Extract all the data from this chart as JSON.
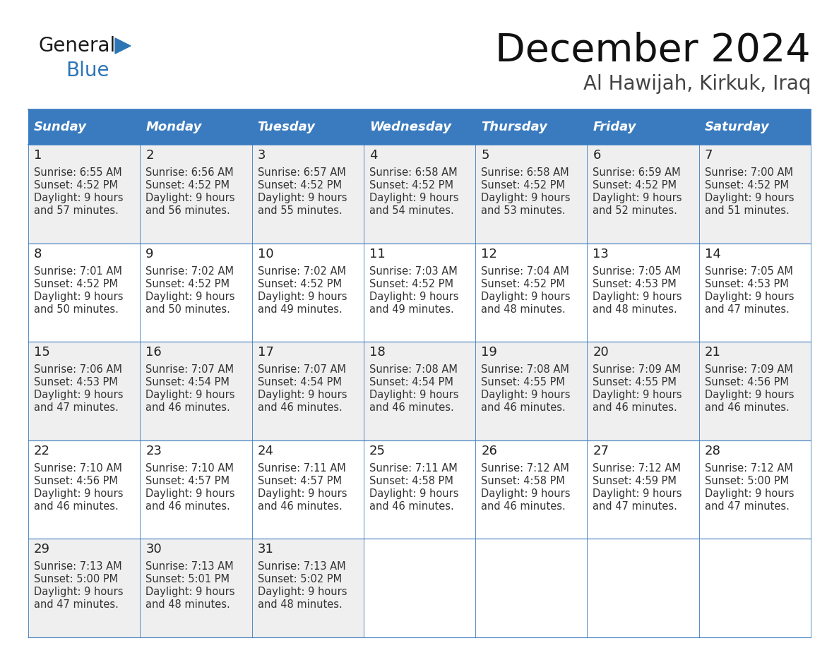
{
  "title": "December 2024",
  "subtitle": "Al Hawijah, Kirkuk, Iraq",
  "header_color": "#3a7bbf",
  "header_text_color": "#ffffff",
  "day_names": [
    "Sunday",
    "Monday",
    "Tuesday",
    "Wednesday",
    "Thursday",
    "Friday",
    "Saturday"
  ],
  "background_color": "#ffffff",
  "row_bg_even": "#efefef",
  "row_bg_odd": "#ffffff",
  "border_color": "#3a7bbf",
  "text_color": "#333333",
  "day_num_color": "#222222",
  "logo_general_color": "#1a1a1a",
  "logo_blue_color": "#2e75b6",
  "logo_triangle_color": "#2e75b6",
  "days": [
    {
      "day": 1,
      "col": 0,
      "row": 0,
      "sunrise": "6:55 AM",
      "sunset": "4:52 PM",
      "daylight": "9 hours and 57 minutes."
    },
    {
      "day": 2,
      "col": 1,
      "row": 0,
      "sunrise": "6:56 AM",
      "sunset": "4:52 PM",
      "daylight": "9 hours and 56 minutes."
    },
    {
      "day": 3,
      "col": 2,
      "row": 0,
      "sunrise": "6:57 AM",
      "sunset": "4:52 PM",
      "daylight": "9 hours and 55 minutes."
    },
    {
      "day": 4,
      "col": 3,
      "row": 0,
      "sunrise": "6:58 AM",
      "sunset": "4:52 PM",
      "daylight": "9 hours and 54 minutes."
    },
    {
      "day": 5,
      "col": 4,
      "row": 0,
      "sunrise": "6:58 AM",
      "sunset": "4:52 PM",
      "daylight": "9 hours and 53 minutes."
    },
    {
      "day": 6,
      "col": 5,
      "row": 0,
      "sunrise": "6:59 AM",
      "sunset": "4:52 PM",
      "daylight": "9 hours and 52 minutes."
    },
    {
      "day": 7,
      "col": 6,
      "row": 0,
      "sunrise": "7:00 AM",
      "sunset": "4:52 PM",
      "daylight": "9 hours and 51 minutes."
    },
    {
      "day": 8,
      "col": 0,
      "row": 1,
      "sunrise": "7:01 AM",
      "sunset": "4:52 PM",
      "daylight": "9 hours and 50 minutes."
    },
    {
      "day": 9,
      "col": 1,
      "row": 1,
      "sunrise": "7:02 AM",
      "sunset": "4:52 PM",
      "daylight": "9 hours and 50 minutes."
    },
    {
      "day": 10,
      "col": 2,
      "row": 1,
      "sunrise": "7:02 AM",
      "sunset": "4:52 PM",
      "daylight": "9 hours and 49 minutes."
    },
    {
      "day": 11,
      "col": 3,
      "row": 1,
      "sunrise": "7:03 AM",
      "sunset": "4:52 PM",
      "daylight": "9 hours and 49 minutes."
    },
    {
      "day": 12,
      "col": 4,
      "row": 1,
      "sunrise": "7:04 AM",
      "sunset": "4:52 PM",
      "daylight": "9 hours and 48 minutes."
    },
    {
      "day": 13,
      "col": 5,
      "row": 1,
      "sunrise": "7:05 AM",
      "sunset": "4:53 PM",
      "daylight": "9 hours and 48 minutes."
    },
    {
      "day": 14,
      "col": 6,
      "row": 1,
      "sunrise": "7:05 AM",
      "sunset": "4:53 PM",
      "daylight": "9 hours and 47 minutes."
    },
    {
      "day": 15,
      "col": 0,
      "row": 2,
      "sunrise": "7:06 AM",
      "sunset": "4:53 PM",
      "daylight": "9 hours and 47 minutes."
    },
    {
      "day": 16,
      "col": 1,
      "row": 2,
      "sunrise": "7:07 AM",
      "sunset": "4:54 PM",
      "daylight": "9 hours and 46 minutes."
    },
    {
      "day": 17,
      "col": 2,
      "row": 2,
      "sunrise": "7:07 AM",
      "sunset": "4:54 PM",
      "daylight": "9 hours and 46 minutes."
    },
    {
      "day": 18,
      "col": 3,
      "row": 2,
      "sunrise": "7:08 AM",
      "sunset": "4:54 PM",
      "daylight": "9 hours and 46 minutes."
    },
    {
      "day": 19,
      "col": 4,
      "row": 2,
      "sunrise": "7:08 AM",
      "sunset": "4:55 PM",
      "daylight": "9 hours and 46 minutes."
    },
    {
      "day": 20,
      "col": 5,
      "row": 2,
      "sunrise": "7:09 AM",
      "sunset": "4:55 PM",
      "daylight": "9 hours and 46 minutes."
    },
    {
      "day": 21,
      "col": 6,
      "row": 2,
      "sunrise": "7:09 AM",
      "sunset": "4:56 PM",
      "daylight": "9 hours and 46 minutes."
    },
    {
      "day": 22,
      "col": 0,
      "row": 3,
      "sunrise": "7:10 AM",
      "sunset": "4:56 PM",
      "daylight": "9 hours and 46 minutes."
    },
    {
      "day": 23,
      "col": 1,
      "row": 3,
      "sunrise": "7:10 AM",
      "sunset": "4:57 PM",
      "daylight": "9 hours and 46 minutes."
    },
    {
      "day": 24,
      "col": 2,
      "row": 3,
      "sunrise": "7:11 AM",
      "sunset": "4:57 PM",
      "daylight": "9 hours and 46 minutes."
    },
    {
      "day": 25,
      "col": 3,
      "row": 3,
      "sunrise": "7:11 AM",
      "sunset": "4:58 PM",
      "daylight": "9 hours and 46 minutes."
    },
    {
      "day": 26,
      "col": 4,
      "row": 3,
      "sunrise": "7:12 AM",
      "sunset": "4:58 PM",
      "daylight": "9 hours and 46 minutes."
    },
    {
      "day": 27,
      "col": 5,
      "row": 3,
      "sunrise": "7:12 AM",
      "sunset": "4:59 PM",
      "daylight": "9 hours and 47 minutes."
    },
    {
      "day": 28,
      "col": 6,
      "row": 3,
      "sunrise": "7:12 AM",
      "sunset": "5:00 PM",
      "daylight": "9 hours and 47 minutes."
    },
    {
      "day": 29,
      "col": 0,
      "row": 4,
      "sunrise": "7:13 AM",
      "sunset": "5:00 PM",
      "daylight": "9 hours and 47 minutes."
    },
    {
      "day": 30,
      "col": 1,
      "row": 4,
      "sunrise": "7:13 AM",
      "sunset": "5:01 PM",
      "daylight": "9 hours and 48 minutes."
    },
    {
      "day": 31,
      "col": 2,
      "row": 4,
      "sunrise": "7:13 AM",
      "sunset": "5:02 PM",
      "daylight": "9 hours and 48 minutes."
    }
  ]
}
